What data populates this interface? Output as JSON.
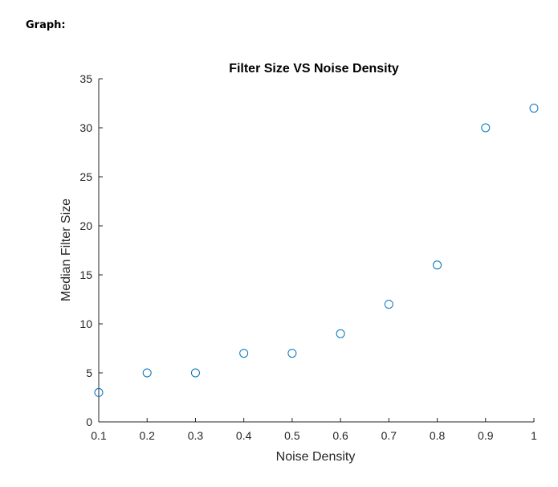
{
  "page": {
    "heading": "Graph:"
  },
  "chart_data": {
    "type": "scatter",
    "title": "Filter Size VS Noise Density",
    "xlabel": "Noise Density",
    "ylabel": "Median Filter Size",
    "xlim": [
      0.1,
      1
    ],
    "ylim": [
      0,
      35
    ],
    "xticks": [
      "0.1",
      "0.2",
      "0.3",
      "0.4",
      "0.5",
      "0.6",
      "0.7",
      "0.8",
      "0.9",
      "1"
    ],
    "xtick_values": [
      0.1,
      0.2,
      0.3,
      0.4,
      0.5,
      0.6,
      0.7,
      0.8,
      0.9,
      1.0
    ],
    "yticks": [
      "0",
      "5",
      "10",
      "15",
      "20",
      "25",
      "30",
      "35"
    ],
    "ytick_values": [
      0,
      5,
      10,
      15,
      20,
      25,
      30,
      35
    ],
    "grid": false,
    "marker": "open-circle",
    "marker_color": "#0072BD",
    "x": [
      0.1,
      0.2,
      0.3,
      0.4,
      0.5,
      0.6,
      0.7,
      0.8,
      0.9,
      1.0
    ],
    "y": [
      3,
      5,
      5,
      7,
      7,
      9,
      12,
      16,
      30,
      32
    ]
  }
}
